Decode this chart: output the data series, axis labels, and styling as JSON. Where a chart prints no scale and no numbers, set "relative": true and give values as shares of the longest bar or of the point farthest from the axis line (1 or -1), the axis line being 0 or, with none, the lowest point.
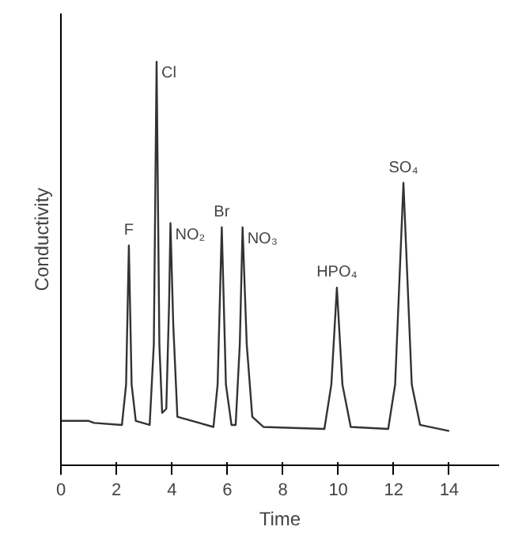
{
  "chart_data": {
    "type": "line",
    "relative": true,
    "xlabel": "Time",
    "ylabel": "Conductivity",
    "xlim": [
      0,
      15.8
    ],
    "xticks": [
      0,
      2,
      4,
      6,
      8,
      10,
      12,
      14
    ],
    "grid": false,
    "line_style": "solid",
    "x": [
      0,
      1,
      1.2,
      2.2,
      2.35,
      2.45,
      2.55,
      2.7,
      3.2,
      3.35,
      3.45,
      3.55,
      3.65,
      3.8,
      3.9,
      3.95,
      4.05,
      4.2,
      5.5,
      5.65,
      5.8,
      5.95,
      6.15,
      6.3,
      6.45,
      6.55,
      6.7,
      6.9,
      7.3,
      9.5,
      9.75,
      9.95,
      10.15,
      10.45,
      11.8,
      12.05,
      12.35,
      12.65,
      12.95,
      14
    ],
    "series": [
      {
        "color": "#333333",
        "values": [
          0.11,
          0.11,
          0.105,
          0.1,
          0.2,
          0.545,
          0.2,
          0.11,
          0.1,
          0.3,
          1.0,
          0.3,
          0.13,
          0.14,
          0.4,
          0.6,
          0.35,
          0.12,
          0.095,
          0.2,
          0.59,
          0.2,
          0.1,
          0.1,
          0.3,
          0.59,
          0.3,
          0.12,
          0.095,
          0.09,
          0.2,
          0.44,
          0.2,
          0.095,
          0.09,
          0.2,
          0.7,
          0.2,
          0.1,
          0.085
        ]
      }
    ],
    "annotations": [
      {
        "text": "F",
        "x": 2.45,
        "y": 0.545
      },
      {
        "text": "Cl",
        "x": 3.45,
        "y": 1.0
      },
      {
        "text": "NO₂",
        "x": 3.95,
        "y": 0.6
      },
      {
        "text": "Br",
        "x": 5.8,
        "y": 0.59
      },
      {
        "text": "NO₃",
        "x": 6.55,
        "y": 0.59
      },
      {
        "text": "HPO₄",
        "x": 9.95,
        "y": 0.44
      },
      {
        "text": "SO₄",
        "x": 12.35,
        "y": 0.7
      }
    ]
  }
}
